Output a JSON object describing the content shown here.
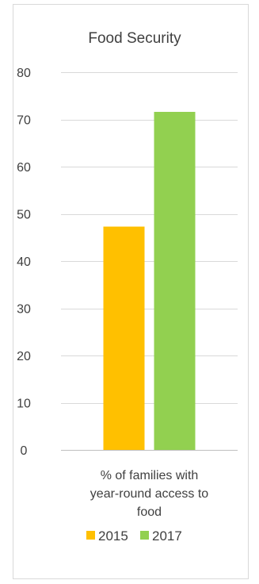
{
  "chart_data": {
    "type": "bar",
    "title": "Food Security",
    "categories": [
      "% of families with year-round access to food"
    ],
    "category_lines": [
      "% of families with",
      "year-round access to",
      "food"
    ],
    "series": [
      {
        "name": "2015",
        "color": "#FFC000",
        "values": [
          47.3
        ]
      },
      {
        "name": "2017",
        "color": "#92D050",
        "values": [
          71.6
        ]
      }
    ],
    "ylim": [
      0,
      80
    ],
    "yticks": [
      0,
      10,
      20,
      30,
      40,
      50,
      60,
      70,
      80
    ],
    "grid": true,
    "legend": "bottom"
  }
}
